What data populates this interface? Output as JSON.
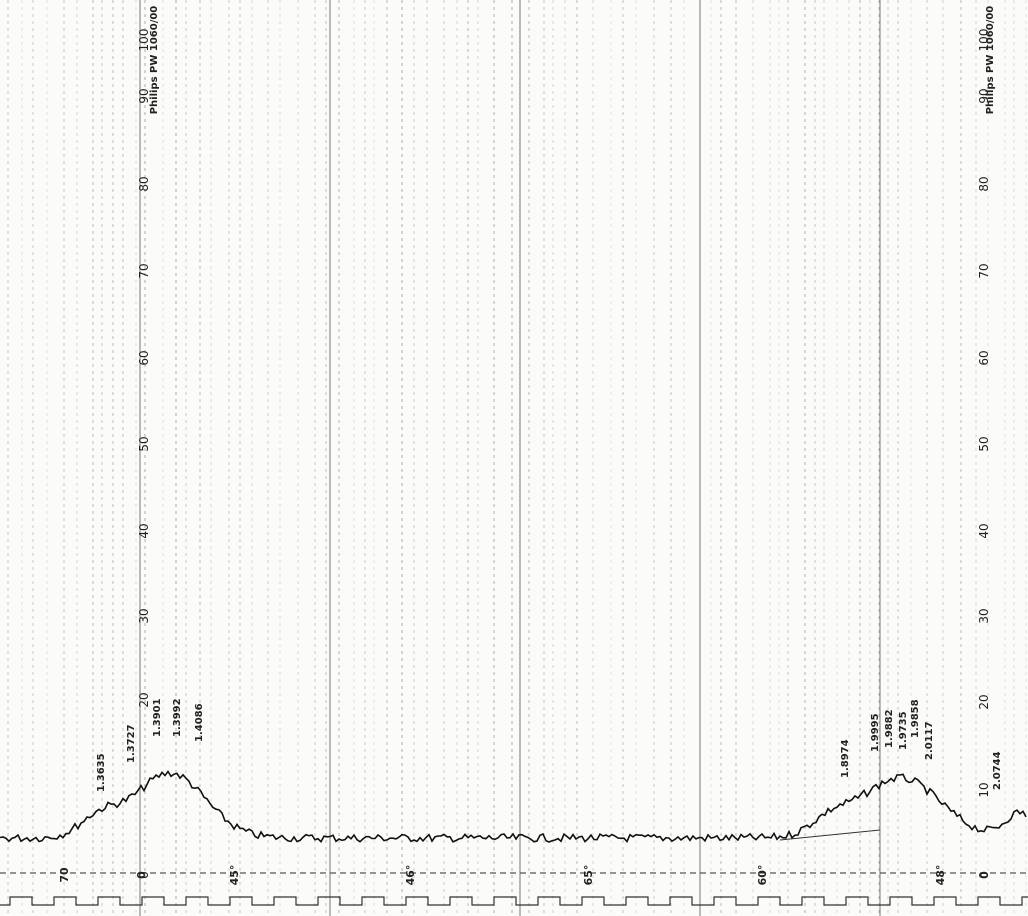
{
  "instrument_labels": [
    "Philips PW 1060/00",
    "Philips PW 1060/00"
  ],
  "left_scale": [
    "100",
    "90",
    "80",
    "70",
    "60",
    "50",
    "40",
    "30",
    "20",
    "0"
  ],
  "right_scale": [
    "100",
    "90",
    "80",
    "70",
    "60",
    "50",
    "40",
    "30",
    "20",
    "10",
    "0"
  ],
  "peak_labels": [
    "1.3635",
    "1.3727",
    "1.3901",
    "1.3992",
    "1.4086",
    "1.8974",
    "1.9995",
    "1.9882",
    "1.9735",
    "1.9858",
    "2.0117",
    "2.0744"
  ],
  "angle_marks": [
    "70",
    "0",
    "45°",
    "46°",
    "65°",
    "60°",
    "48°",
    "0"
  ]
}
